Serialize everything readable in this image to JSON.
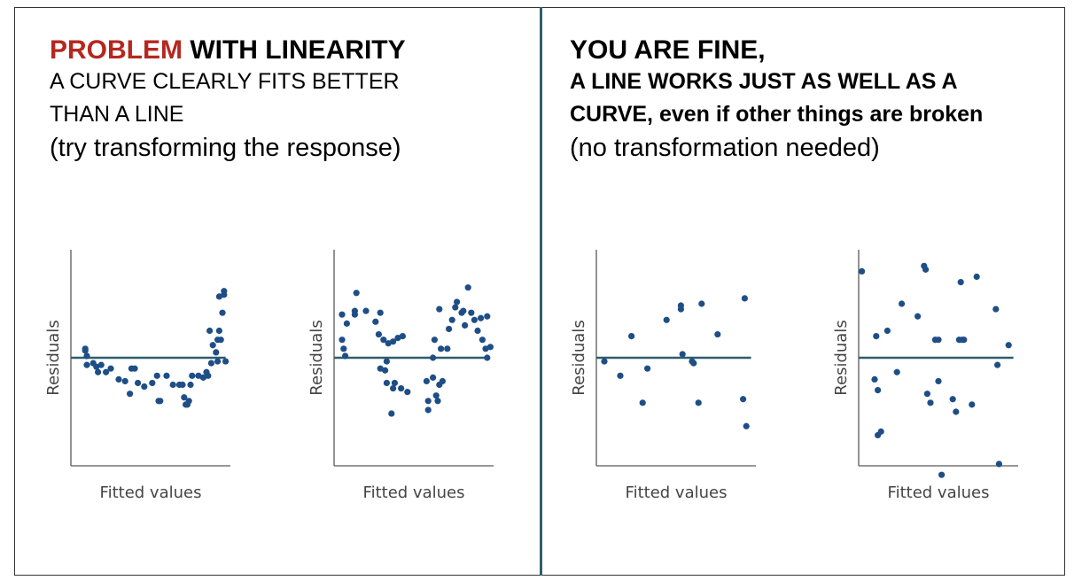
{
  "left_heading": {
    "problem_word": "PROBLEM",
    "title_rest": " WITH LINEARITY",
    "line2": "A CURVE CLEARLY FITS BETTER",
    "line3": "THAN A LINE",
    "line4": "(try transforming the response)"
  },
  "right_heading": {
    "line1": "YOU ARE FINE,",
    "line2": "A LINE WORKS JUST AS WELL AS A",
    "line3": "CURVE, even if other things are broken",
    "line4": "(no transformation needed)"
  },
  "colors": {
    "accent": "#b5271f",
    "points": "#1f4e86",
    "fit_line": "#2e5e6e",
    "axes": "#595959",
    "divider": "#2e5e6e"
  },
  "chart_data": [
    {
      "type": "scatter",
      "xlabel": "Fitted values",
      "ylabel": "Residuals",
      "fit_line_y": 0,
      "xlim": [
        0,
        10
      ],
      "ylim": [
        -6,
        6
      ],
      "points": [
        [
          0.9,
          0.5
        ],
        [
          0.9,
          0.4
        ],
        [
          1.0,
          0.1
        ],
        [
          1.0,
          -0.4
        ],
        [
          1.4,
          -0.3
        ],
        [
          1.6,
          -0.5
        ],
        [
          1.7,
          -0.8
        ],
        [
          1.9,
          -0.4
        ],
        [
          2.2,
          -0.8
        ],
        [
          2.5,
          -0.6
        ],
        [
          3.0,
          -1.2
        ],
        [
          3.4,
          -1.3
        ],
        [
          3.7,
          -2.0
        ],
        [
          3.8,
          -0.6
        ],
        [
          4.0,
          -0.6
        ],
        [
          4.2,
          -1.4
        ],
        [
          4.6,
          -1.6
        ],
        [
          5.1,
          -1.4
        ],
        [
          5.4,
          -1.0
        ],
        [
          5.5,
          -2.4
        ],
        [
          5.6,
          -2.4
        ],
        [
          6.0,
          -1.0
        ],
        [
          6.4,
          -1.5
        ],
        [
          6.8,
          -1.5
        ],
        [
          7.0,
          -1.5
        ],
        [
          7.1,
          -2.2
        ],
        [
          7.2,
          -2.6
        ],
        [
          7.3,
          -2.6
        ],
        [
          7.4,
          -2.4
        ],
        [
          7.5,
          -1.5
        ],
        [
          7.6,
          -1.0
        ],
        [
          8.0,
          -1.0
        ],
        [
          8.3,
          -1.1
        ],
        [
          8.5,
          -0.8
        ],
        [
          8.6,
          -1.0
        ],
        [
          8.8,
          -0.3
        ],
        [
          8.7,
          1.5
        ],
        [
          8.9,
          0.7
        ],
        [
          9.1,
          0.3
        ],
        [
          9.2,
          -0.2
        ],
        [
          9.2,
          1.0
        ],
        [
          9.3,
          1.5
        ],
        [
          9.3,
          3.4
        ],
        [
          9.4,
          1.0
        ],
        [
          9.5,
          2.5
        ],
        [
          9.6,
          3.5
        ],
        [
          9.6,
          3.7
        ],
        [
          9.7,
          -0.2
        ]
      ]
    },
    {
      "type": "scatter",
      "xlabel": "Fitted values",
      "ylabel": "Residuals",
      "fit_line_y": 0,
      "xlim": [
        0,
        10
      ],
      "ylim": [
        -6,
        6
      ],
      "points": [
        [
          0.5,
          2.4
        ],
        [
          0.5,
          1.0
        ],
        [
          0.6,
          0.5
        ],
        [
          0.7,
          0.1
        ],
        [
          0.8,
          1.9
        ],
        [
          1.3,
          2.4
        ],
        [
          1.4,
          3.6
        ],
        [
          1.3,
          2.6
        ],
        [
          2.0,
          2.6
        ],
        [
          2.6,
          2.0
        ],
        [
          2.8,
          1.3
        ],
        [
          2.9,
          2.5
        ],
        [
          3.1,
          1.0
        ],
        [
          2.9,
          -0.6
        ],
        [
          3.2,
          -0.7
        ],
        [
          3.3,
          -1.4
        ],
        [
          3.3,
          -0.2
        ],
        [
          3.4,
          0.8
        ],
        [
          3.7,
          0.9
        ],
        [
          3.7,
          -1.7
        ],
        [
          3.6,
          -3.1
        ],
        [
          3.8,
          -1.4
        ],
        [
          4.0,
          1.1
        ],
        [
          4.2,
          -1.7
        ],
        [
          4.3,
          1.2
        ],
        [
          4.6,
          -1.9
        ],
        [
          5.8,
          -1.3
        ],
        [
          5.9,
          -2.4
        ],
        [
          5.9,
          -2.9
        ],
        [
          6.2,
          -1.1
        ],
        [
          6.2,
          0.0
        ],
        [
          6.3,
          1.0
        ],
        [
          6.4,
          -2.1
        ],
        [
          6.5,
          -2.4
        ],
        [
          6.6,
          2.7
        ],
        [
          6.6,
          -1.5
        ],
        [
          6.7,
          0.5
        ],
        [
          6.8,
          -1.3
        ],
        [
          7.1,
          0.5
        ],
        [
          7.2,
          1.6
        ],
        [
          7.4,
          2.1
        ],
        [
          7.6,
          2.8
        ],
        [
          7.7,
          3.1
        ],
        [
          8.0,
          2.5
        ],
        [
          8.2,
          1.8
        ],
        [
          8.1,
          2.6
        ],
        [
          8.4,
          3.9
        ],
        [
          8.6,
          2.5
        ],
        [
          8.8,
          2.1
        ],
        [
          9.0,
          1.5
        ],
        [
          9.2,
          2.2
        ],
        [
          9.3,
          1.0
        ],
        [
          9.5,
          0.5
        ],
        [
          9.6,
          2.3
        ],
        [
          9.6,
          0.0
        ],
        [
          9.8,
          0.6
        ]
      ]
    },
    {
      "type": "scatter",
      "xlabel": "Fitted values",
      "ylabel": "Residuals",
      "fit_line_y": 0,
      "xlim": [
        0,
        10
      ],
      "ylim": [
        -6,
        6
      ],
      "points": [
        [
          0.5,
          -0.2
        ],
        [
          1.5,
          -1.0
        ],
        [
          2.2,
          1.2
        ],
        [
          2.9,
          -2.5
        ],
        [
          3.2,
          -0.6
        ],
        [
          4.4,
          2.1
        ],
        [
          5.3,
          2.7
        ],
        [
          5.3,
          2.9
        ],
        [
          5.4,
          0.2
        ],
        [
          6.0,
          -0.2
        ],
        [
          6.1,
          -0.3
        ],
        [
          6.4,
          -2.5
        ],
        [
          6.6,
          3.0
        ],
        [
          7.6,
          1.3
        ],
        [
          9.2,
          -2.3
        ],
        [
          9.3,
          3.3
        ],
        [
          9.4,
          -3.8
        ]
      ]
    },
    {
      "type": "scatter",
      "xlabel": "Fitted values",
      "ylabel": "Residuals",
      "fit_line_y": 0,
      "xlim": [
        0,
        10
      ],
      "ylim": [
        -6,
        6
      ],
      "points": [
        [
          0.2,
          4.8
        ],
        [
          1.0,
          -1.2
        ],
        [
          1.1,
          1.2
        ],
        [
          1.2,
          -1.8
        ],
        [
          1.2,
          -4.3
        ],
        [
          1.4,
          -4.1
        ],
        [
          1.8,
          1.5
        ],
        [
          2.4,
          -0.8
        ],
        [
          2.7,
          3.0
        ],
        [
          3.7,
          2.3
        ],
        [
          4.1,
          5.1
        ],
        [
          4.2,
          4.9
        ],
        [
          4.3,
          -2.0
        ],
        [
          4.5,
          -2.5
        ],
        [
          4.8,
          1.0
        ],
        [
          5.0,
          -1.3
        ],
        [
          5.0,
          1.0
        ],
        [
          5.2,
          -6.5
        ],
        [
          5.9,
          -2.3
        ],
        [
          6.1,
          -3.0
        ],
        [
          6.3,
          1.0
        ],
        [
          6.4,
          4.2
        ],
        [
          6.5,
          1.0
        ],
        [
          6.6,
          1.0
        ],
        [
          7.1,
          -2.6
        ],
        [
          7.4,
          4.5
        ],
        [
          8.6,
          2.7
        ],
        [
          8.7,
          -0.4
        ],
        [
          8.8,
          -5.9
        ],
        [
          9.4,
          0.7
        ]
      ]
    }
  ]
}
